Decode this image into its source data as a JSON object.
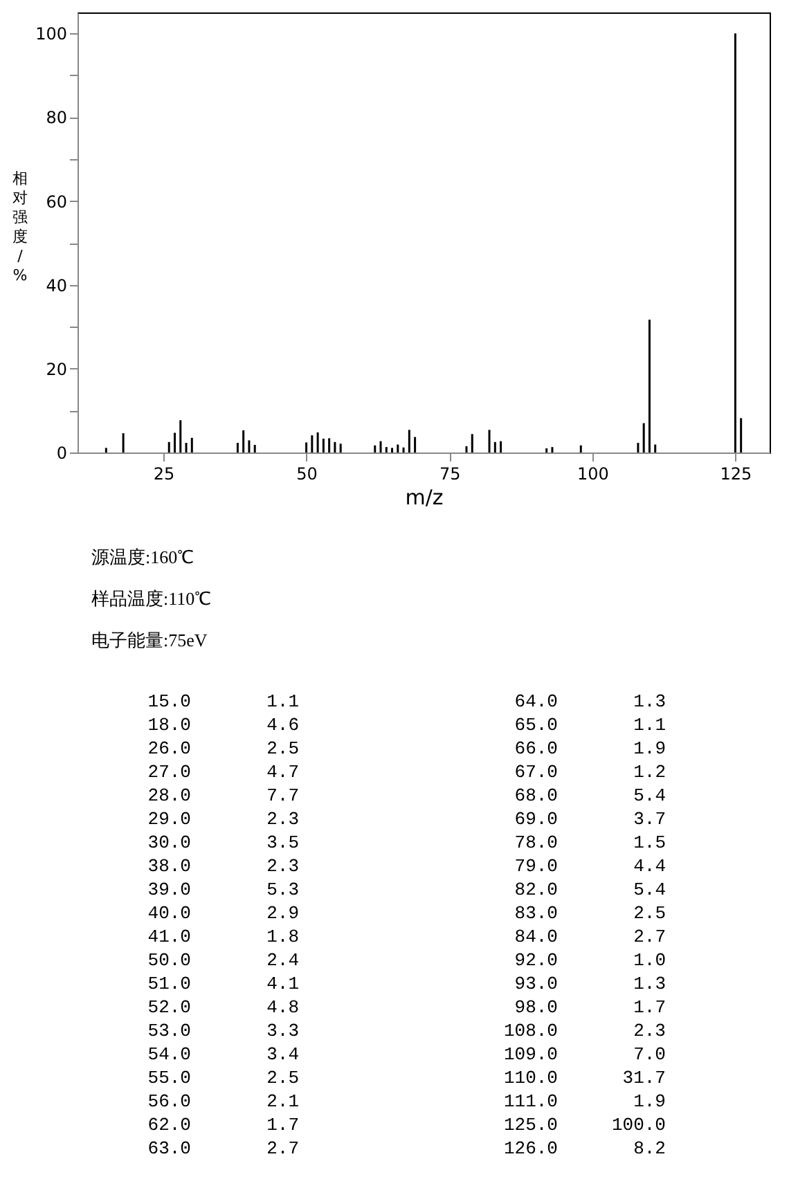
{
  "chart_data": [
    {
      "type": "bar",
      "xlabel": "m/z",
      "ylabel": "相对强度/%",
      "x": [
        15,
        18,
        26,
        27,
        28,
        29,
        30,
        38,
        39,
        40,
        41,
        50,
        51,
        52,
        53,
        54,
        55,
        56,
        62,
        63,
        64,
        65,
        66,
        67,
        68,
        69,
        78,
        79,
        82,
        83,
        84,
        92,
        93,
        98,
        108,
        109,
        110,
        111,
        125,
        126
      ],
      "values": [
        1.1,
        4.6,
        2.5,
        4.7,
        7.7,
        2.3,
        3.5,
        2.3,
        5.3,
        2.9,
        1.8,
        2.4,
        4.1,
        4.8,
        3.3,
        3.4,
        2.5,
        2.1,
        1.7,
        2.7,
        1.3,
        1.1,
        1.9,
        1.2,
        5.4,
        3.7,
        1.5,
        4.4,
        5.4,
        2.5,
        2.7,
        1.0,
        1.3,
        1.7,
        2.3,
        7.0,
        31.7,
        1.9,
        100.0,
        8.2
      ],
      "color": "#000000",
      "xlim": [
        10,
        131
      ],
      "xticks": [
        25,
        50,
        75,
        100,
        125
      ],
      "ylim": [
        0,
        105
      ],
      "yticks": [
        0,
        {
          "value": 10,
          "label": null
        },
        20,
        {
          "value": 30,
          "label": null
        },
        40,
        {
          "value": 50,
          "label": null
        },
        60,
        {
          "value": 70,
          "label": null
        },
        80,
        {
          "value": 90,
          "label": null
        },
        100
      ],
      "annotations": [
        "源温度:160℃",
        "样品温度:110℃",
        "电子能量:75eV"
      ]
    },
    {
      "type": "other",
      "annotations": [
        "15.0       1.1",
        "64.0       1.3",
        "18.0       4.6",
        "65.0       1.1",
        "26.0       2.5",
        "66.0       1.9",
        "27.0       4.7",
        "67.0       1.2",
        "28.0       7.7",
        "68.0       5.4",
        "29.0       2.3",
        "69.0       3.7",
        "30.0       3.5",
        "78.0       1.5",
        "38.0       2.3",
        "79.0       4.4",
        "39.0       5.3",
        "82.0       5.4",
        "40.0       2.9",
        "83.0       2.5",
        "41.0       1.8",
        "84.0       2.7",
        "50.0       2.4",
        "92.0       1.0",
        "51.0       4.1",
        "93.0       1.3",
        "52.0       4.8",
        "98.0       1.7",
        "53.0       3.3",
        "108.0       2.3",
        "54.0       3.4",
        "109.0       7.0",
        "55.0       2.5",
        "110.0      31.7",
        "56.0       2.1",
        "111.0       1.9",
        "62.0       1.7",
        "125.0     100.0",
        "63.0       2.7",
        "126.0       8.2"
      ]
    }
  ]
}
